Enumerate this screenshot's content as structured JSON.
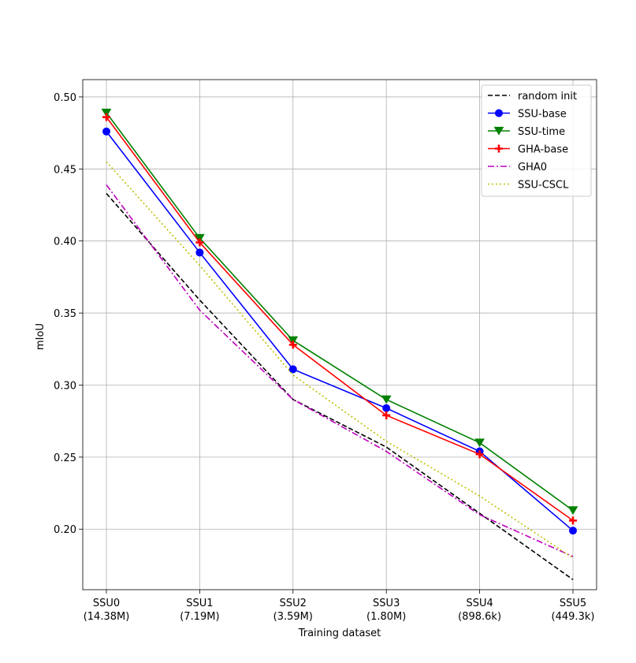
{
  "chart_data": {
    "type": "line",
    "title": "",
    "xlabel": "Training dataset",
    "ylabel": "mIoU",
    "ylim": [
      0.158,
      0.512
    ],
    "yticks": [
      "0.20",
      "0.25",
      "0.30",
      "0.35",
      "0.40",
      "0.45",
      "0.50"
    ],
    "grid": true,
    "legend_position": "top-right",
    "categories": [
      {
        "name": "SSU0",
        "size": "(14.38M)"
      },
      {
        "name": "SSU1",
        "size": "(7.19M)"
      },
      {
        "name": "SSU2",
        "size": "(3.59M)"
      },
      {
        "name": "SSU3",
        "size": "(1.80M)"
      },
      {
        "name": "SSU4",
        "size": "(898.6k)"
      },
      {
        "name": "SSU5",
        "size": "(449.3k)"
      }
    ],
    "series": [
      {
        "name": "random init",
        "color": "#000000",
        "linestyle": "dashed",
        "marker": "none",
        "values": [
          0.433,
          0.359,
          0.29,
          0.257,
          0.211,
          0.165
        ]
      },
      {
        "name": "SSU-base",
        "color": "#0000ff",
        "linestyle": "solid",
        "marker": "circle",
        "values": [
          0.476,
          0.392,
          0.311,
          0.284,
          0.254,
          0.199
        ]
      },
      {
        "name": "SSU-time",
        "color": "#008000",
        "linestyle": "solid",
        "marker": "triangle-down",
        "values": [
          0.489,
          0.402,
          0.331,
          0.29,
          0.26,
          0.213
        ]
      },
      {
        "name": "GHA-base",
        "color": "#ff0000",
        "linestyle": "solid",
        "marker": "plus",
        "values": [
          0.486,
          0.399,
          0.328,
          0.279,
          0.252,
          0.206
        ]
      },
      {
        "name": "GHA0",
        "color": "#bf00bf",
        "linestyle": "dashdot",
        "marker": "none",
        "values": [
          0.439,
          0.352,
          0.29,
          0.254,
          0.21,
          0.181
        ]
      },
      {
        "name": "SSU-CSCL",
        "color": "#bfbf00",
        "linestyle": "dotted",
        "marker": "none",
        "values": [
          0.455,
          0.383,
          0.307,
          0.261,
          0.223,
          0.18
        ]
      }
    ]
  }
}
